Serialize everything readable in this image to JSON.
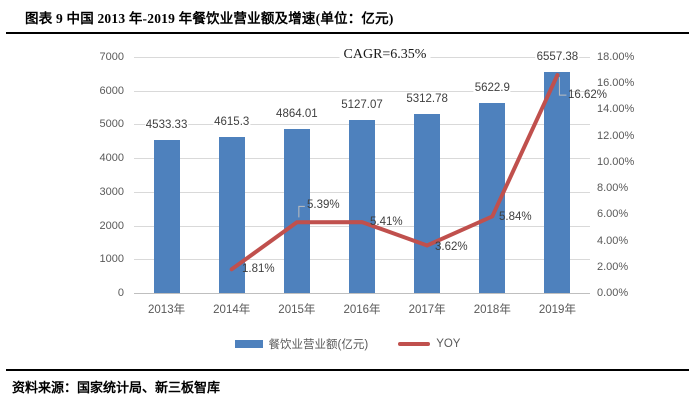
{
  "header": {
    "title": "图表 9 中国 2013 年-2019 年餐饮业营业额及增速(单位：亿元)"
  },
  "footer": {
    "source": "资料来源：国家统计局、新三板智库"
  },
  "chart_data": {
    "type": "bar",
    "subtype": "combo-bar-line-dual-axis",
    "categories": [
      "2013年",
      "2014年",
      "2015年",
      "2016年",
      "2017年",
      "2018年",
      "2019年"
    ],
    "series": [
      {
        "name": "餐饮业营业额(亿元)",
        "type": "bar",
        "axis": "left",
        "color": "#4e81bd",
        "values": [
          4533.33,
          4615.3,
          4864.01,
          5127.07,
          5312.78,
          5622.9,
          6557.38
        ],
        "labels": [
          "4533.33",
          "4615.3",
          "4864.01",
          "5127.07",
          "5312.78",
          "5622.9",
          "6557.38"
        ]
      },
      {
        "name": "YOY",
        "type": "line",
        "axis": "right",
        "color": "#c0504d",
        "values": [
          null,
          1.81,
          5.39,
          5.41,
          3.62,
          5.84,
          16.62
        ],
        "labels": [
          null,
          "1.81%",
          "5.39%",
          "5.41%",
          "3.62%",
          "5.84%",
          "16.62%"
        ]
      }
    ],
    "annotation": "CAGR=6.35%",
    "left_axis": {
      "min": 0,
      "max": 7000,
      "step": 1000,
      "ticks": [
        "0",
        "1000",
        "2000",
        "3000",
        "4000",
        "5000",
        "6000",
        "7000"
      ]
    },
    "right_axis": {
      "min": 0,
      "max": 18,
      "step": 2,
      "ticks": [
        "0.00%",
        "2.00%",
        "4.00%",
        "6.00%",
        "8.00%",
        "10.00%",
        "12.00%",
        "14.00%",
        "16.00%",
        "18.00%"
      ]
    },
    "legend_position": "bottom",
    "gridlines": "horizontal",
    "leader_line_color": "#bfbfbf",
    "gridline_color": "#d9d9d9"
  }
}
